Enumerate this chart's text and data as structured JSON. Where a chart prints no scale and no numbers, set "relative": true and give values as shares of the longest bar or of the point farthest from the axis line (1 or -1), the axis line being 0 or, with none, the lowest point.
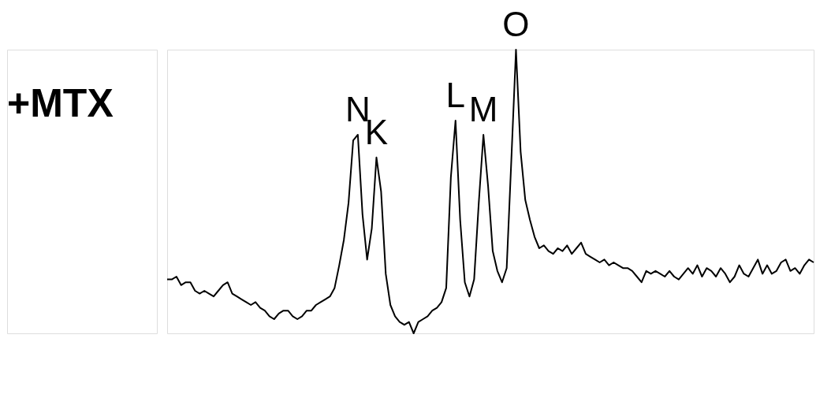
{
  "chart_data": {
    "type": "line",
    "title": "+MTX",
    "relative": true,
    "line_style": "solid",
    "categories": [
      null,
      null,
      null,
      null,
      null,
      null,
      null,
      null,
      null,
      null,
      null,
      null,
      null,
      null,
      null,
      null,
      null,
      null,
      null,
      null,
      null,
      null,
      null,
      null,
      null,
      null,
      null,
      null,
      null,
      null,
      null,
      null,
      null,
      null,
      null,
      null,
      null,
      null,
      null,
      null,
      null,
      null,
      null,
      null,
      null,
      null,
      null,
      null,
      null,
      null,
      null,
      null,
      null,
      null,
      null,
      null,
      null,
      null,
      null,
      null,
      null,
      null,
      null,
      null,
      null,
      null,
      null,
      null,
      null,
      null,
      null,
      null,
      null,
      null,
      null,
      null,
      null,
      null,
      null,
      null,
      null,
      null,
      null,
      null,
      null,
      null,
      null,
      null,
      null,
      null,
      null,
      null,
      null,
      null,
      null,
      null,
      null,
      null,
      null,
      null,
      null,
      null,
      null,
      null,
      null,
      null,
      null,
      null,
      null,
      null,
      null,
      null,
      null,
      null,
      null,
      null,
      null,
      null,
      null,
      null,
      null,
      null,
      null,
      null,
      null,
      null,
      null,
      null,
      null,
      null,
      null,
      null,
      null,
      null,
      null,
      null,
      null,
      null,
      null,
      null
    ],
    "series": [
      {
        "color": "#000000",
        "values": [
          0.19,
          0.19,
          0.2,
          0.17,
          0.18,
          0.18,
          0.15,
          0.14,
          0.15,
          0.14,
          0.13,
          0.15,
          0.17,
          0.18,
          0.14,
          0.13,
          0.12,
          0.11,
          0.1,
          0.11,
          0.09,
          0.08,
          0.06,
          0.05,
          0.07,
          0.08,
          0.08,
          0.06,
          0.05,
          0.06,
          0.08,
          0.08,
          0.1,
          0.11,
          0.12,
          0.13,
          0.16,
          0.24,
          0.33,
          0.46,
          0.68,
          0.7,
          0.42,
          0.26,
          0.37,
          0.62,
          0.5,
          0.21,
          0.1,
          0.06,
          0.04,
          0.03,
          0.04,
          0.0,
          0.04,
          0.05,
          0.06,
          0.08,
          0.09,
          0.11,
          0.16,
          0.55,
          0.75,
          0.4,
          0.18,
          0.13,
          0.19,
          0.46,
          0.7,
          0.52,
          0.29,
          0.22,
          0.18,
          0.23,
          0.61,
          1.0,
          0.64,
          0.47,
          0.4,
          0.34,
          0.3,
          0.31,
          0.29,
          0.28,
          0.3,
          0.29,
          0.31,
          0.28,
          0.3,
          0.32,
          0.28,
          0.27,
          0.26,
          0.25,
          0.26,
          0.24,
          0.25,
          0.24,
          0.23,
          0.23,
          0.22,
          0.2,
          0.18,
          0.22,
          0.21,
          0.22,
          0.21,
          0.2,
          0.22,
          0.2,
          0.19,
          0.21,
          0.23,
          0.21,
          0.24,
          0.2,
          0.23,
          0.22,
          0.2,
          0.23,
          0.21,
          0.18,
          0.2,
          0.24,
          0.21,
          0.2,
          0.23,
          0.26,
          0.21,
          0.24,
          0.21,
          0.22,
          0.25,
          0.26,
          0.22,
          0.23,
          0.21,
          0.24,
          0.26,
          0.25
        ]
      }
    ],
    "annotations": [
      "N",
      "K",
      "L",
      "M",
      "O"
    ]
  }
}
